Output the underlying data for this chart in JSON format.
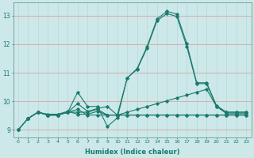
{
  "xlabel": "Humidex (Indice chaleur)",
  "ylabel": "",
  "bg_color": "#cce8e8",
  "grid_color_v": "#c0dada",
  "grid_color_h": "#e8c8c8",
  "line_color": "#1a7a6e",
  "xlim": [
    -0.5,
    23.5
  ],
  "ylim": [
    8.75,
    13.45
  ],
  "xticks": [
    0,
    1,
    2,
    3,
    4,
    5,
    6,
    7,
    8,
    9,
    10,
    11,
    12,
    13,
    14,
    15,
    16,
    17,
    18,
    19,
    20,
    21,
    22,
    23
  ],
  "yticks": [
    9,
    10,
    11,
    12,
    13
  ],
  "lines": [
    {
      "x": [
        0,
        1,
        2,
        3,
        4,
        5,
        6,
        7,
        8,
        9,
        10,
        11,
        12,
        13,
        14,
        15,
        16,
        17,
        18,
        19,
        20,
        21,
        22,
        23
      ],
      "y": [
        9.0,
        9.4,
        9.62,
        9.52,
        9.52,
        9.62,
        10.32,
        9.82,
        9.82,
        9.12,
        9.42,
        10.82,
        11.15,
        11.92,
        12.88,
        13.15,
        13.05,
        12.02,
        10.65,
        10.65,
        9.85,
        9.62,
        9.62,
        9.62
      ]
    },
    {
      "x": [
        0,
        1,
        2,
        3,
        4,
        5,
        6,
        7,
        8,
        9,
        10,
        11,
        12,
        13,
        14,
        15,
        16,
        17,
        18,
        19,
        20,
        21,
        22,
        23
      ],
      "y": [
        9.0,
        9.4,
        9.62,
        9.52,
        9.52,
        9.62,
        9.72,
        9.52,
        9.52,
        9.52,
        9.52,
        9.62,
        9.72,
        9.82,
        9.92,
        10.02,
        10.12,
        10.22,
        10.32,
        10.42,
        9.82,
        9.62,
        9.62,
        9.62
      ]
    },
    {
      "x": [
        1,
        2,
        3,
        4,
        5,
        6,
        7,
        8,
        9,
        10,
        11,
        12,
        13,
        14,
        15,
        16,
        17,
        18,
        19,
        20,
        21,
        22,
        23
      ],
      "y": [
        9.4,
        9.62,
        9.52,
        9.52,
        9.62,
        9.62,
        9.62,
        9.72,
        9.52,
        9.52,
        9.52,
        9.52,
        9.52,
        9.52,
        9.52,
        9.52,
        9.52,
        9.52,
        9.52,
        9.52,
        9.52,
        9.52,
        9.52
      ]
    },
    {
      "x": [
        1,
        2,
        3,
        4,
        5,
        6,
        7,
        8,
        9,
        10,
        11,
        12,
        13,
        14,
        15,
        16,
        17,
        18,
        19,
        20,
        21,
        22,
        23
      ],
      "y": [
        9.4,
        9.62,
        9.55,
        9.55,
        9.65,
        9.55,
        9.55,
        9.65,
        9.52,
        9.52,
        9.52,
        9.52,
        9.52,
        9.52,
        9.52,
        9.52,
        9.52,
        9.52,
        9.52,
        9.52,
        9.52,
        9.52,
        9.52
      ]
    },
    {
      "x": [
        0,
        1,
        2,
        3,
        4,
        5,
        6,
        7,
        8,
        9,
        10,
        11,
        12,
        13,
        14,
        15,
        16,
        17,
        18,
        19,
        20,
        21,
        22,
        23
      ],
      "y": [
        9.0,
        9.4,
        9.62,
        9.52,
        9.52,
        9.62,
        9.92,
        9.65,
        9.75,
        9.82,
        9.52,
        10.82,
        11.12,
        11.87,
        12.82,
        13.07,
        12.97,
        11.92,
        10.62,
        10.62,
        9.82,
        9.57,
        9.57,
        9.57
      ]
    }
  ]
}
